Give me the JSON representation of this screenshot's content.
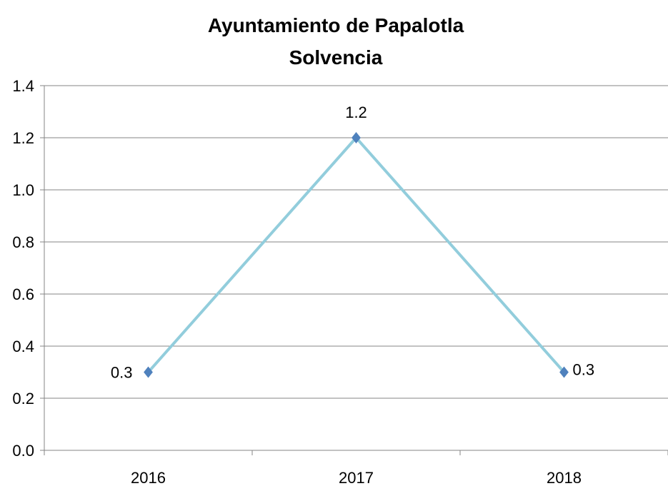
{
  "chart_data": {
    "type": "line",
    "title": [
      "Ayuntamiento  de Papalotla",
      "Solvencia"
    ],
    "xlabel": "",
    "ylabel": "",
    "categories": [
      "2016",
      "2017",
      "2018"
    ],
    "series": [
      {
        "values": [
          0.3,
          1.2,
          0.3
        ],
        "data_labels": [
          "0.3",
          "1.2",
          "0.3"
        ],
        "line_color": "#92cddc",
        "marker": "diamond",
        "marker_color": "#4f81bd"
      }
    ],
    "ylim": [
      0,
      1.4
    ],
    "yticks": [
      "0.0",
      "0.2",
      "0.4",
      "0.6",
      "0.8",
      "1.0",
      "1.2",
      "1.4"
    ],
    "grid": true,
    "legend": "none"
  }
}
